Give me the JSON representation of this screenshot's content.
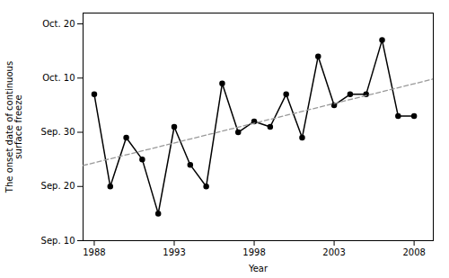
{
  "chart_data": {
    "type": "line",
    "x": [
      1988,
      1989,
      1990,
      1991,
      1992,
      1993,
      1994,
      1995,
      1996,
      1997,
      1998,
      1999,
      2000,
      2001,
      2002,
      2003,
      2004,
      2005,
      2006,
      2007,
      2008
    ],
    "series": [
      {
        "color": "#000000",
        "marker": "o",
        "line_style": "solid",
        "values": [
          37,
          20,
          29,
          25,
          15,
          31,
          24,
          20,
          39,
          30,
          32,
          31,
          37,
          29,
          44,
          35,
          37,
          37,
          47,
          33,
          33
        ]
      },
      {
        "color": "#999999",
        "line_style": "dashed",
        "x": [
          1987.3,
          2009.2
        ],
        "values": [
          23.8709524,
          39.8266667
        ]
      }
    ],
    "xlabel": "Year",
    "ylabel": "The onset date of continuous\nsurface freeze",
    "xlim": [
      1987.3,
      2009.2
    ],
    "xticks": [
      1988,
      1993,
      1998,
      2003,
      2008
    ],
    "ylim": [
      10,
      52
    ],
    "yticks": [
      {
        "value": 10,
        "label": "Sep. 10"
      },
      {
        "value": 20,
        "label": "Sep. 20"
      },
      {
        "value": 30,
        "label": "Sep. 30"
      },
      {
        "value": 40,
        "label": "Oct. 10"
      },
      {
        "value": 50,
        "label": "Oct. 20"
      }
    ],
    "grid": false
  }
}
